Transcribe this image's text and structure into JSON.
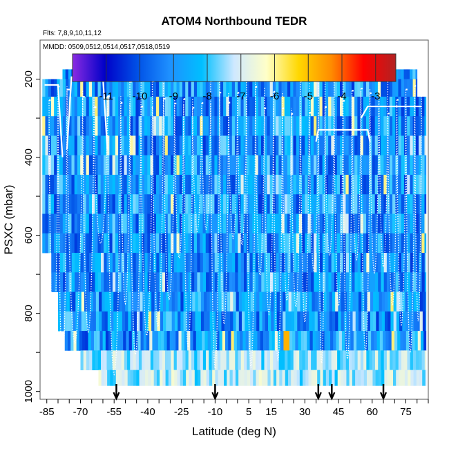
{
  "chart_data": {
    "type": "heatmap",
    "title": "ATOM4 Northbound TEDR",
    "flights_label": "Flts: 7,8,9,10,11,12",
    "dates_label": "MMDD: 0509,0512,0514,0517,0518,0519",
    "xlabel": "Latitude (deg N)",
    "ylabel": "PSXC (mbar)",
    "xlim": [
      -88,
      85
    ],
    "ylim": [
      1020,
      100
    ],
    "x_ticks": [
      -85,
      -70,
      -55,
      -40,
      -25,
      -10,
      5,
      15,
      30,
      45,
      60,
      75
    ],
    "y_ticks": [
      200,
      400,
      600,
      800,
      1000
    ],
    "colorbar": {
      "min": -12,
      "max": -2.4,
      "ticks": [
        -11,
        -10,
        -9,
        -8,
        -7,
        -6,
        -5,
        -4,
        -3
      ],
      "stops": [
        "#8a2be2",
        "#0000c8",
        "#0050e6",
        "#1e90ff",
        "#00bfff",
        "#cfe8ff",
        "#ffffc8",
        "#ffd700",
        "#ff8c00",
        "#ff0000",
        "#b22222"
      ]
    },
    "arrow_latitudes": [
      -54,
      -10,
      36,
      42,
      65
    ],
    "pressure_levels": [
      180,
      220,
      270,
      320,
      370,
      420,
      470,
      520,
      570,
      620,
      670,
      720,
      770,
      820,
      870,
      920,
      970,
      1000
    ],
    "grid": false,
    "legend": "colorbar top-center"
  }
}
